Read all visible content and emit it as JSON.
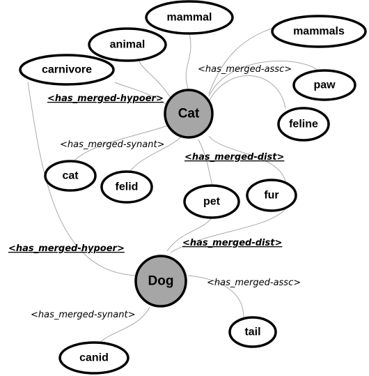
{
  "nodes": {
    "cat": "Cat",
    "dog": "Dog",
    "mammal": "mammal",
    "animal": "animal",
    "carnivore": "carnivore",
    "mammals": "mammals",
    "paw": "paw",
    "feline": "feline",
    "cat_small": "cat",
    "felid": "felid",
    "pet": "pet",
    "fur": "fur",
    "tail": "tail",
    "canid": "canid"
  },
  "relations": {
    "cat_hypoer": "<has_merged-hypoer>",
    "cat_assc": "<has_merged-assc>",
    "cat_synant": "<has_merged-synant>",
    "cat_dist": "<has_merged-dist>",
    "dog_hypoer": "<has_merged-hypoer>",
    "dog_dist": "<has_merged-dist>",
    "dog_assc": "<has_merged-assc>",
    "dog_synant": "<has_merged-synant>"
  },
  "colors": {
    "core_fill": "#a6a6a6",
    "edge": "#a9a9a9",
    "outline": "#000000"
  }
}
